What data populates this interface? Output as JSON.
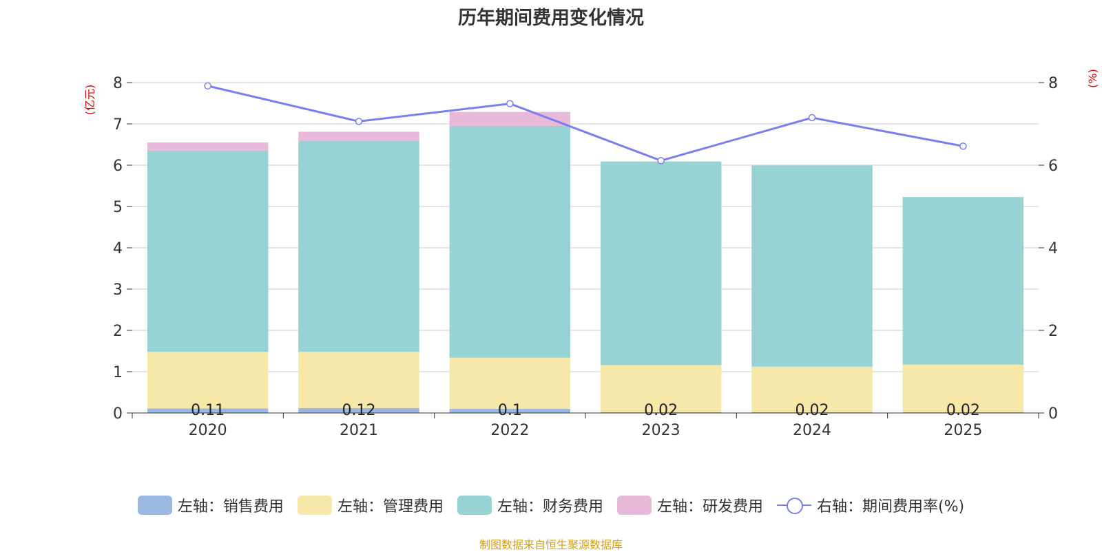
{
  "chart_data": {
    "type": "bar",
    "title": "历年期间费用变化情况",
    "categories": [
      "2020",
      "2021",
      "2022",
      "2023",
      "2024",
      "2025"
    ],
    "series": [
      {
        "name": "左轴：销售费用",
        "axis": "left",
        "type": "bar",
        "color": "#9bb8e3",
        "values": [
          0.11,
          0.12,
          0.1,
          0.02,
          0.02,
          0.02
        ]
      },
      {
        "name": "左轴：管理费用",
        "axis": "left",
        "type": "bar",
        "color": "#f7e7a8",
        "values": [
          1.37,
          1.36,
          1.24,
          1.14,
          1.1,
          1.15
        ]
      },
      {
        "name": "左轴：财务费用",
        "axis": "left",
        "type": "bar",
        "color": "#97d3d4",
        "values": [
          4.87,
          5.11,
          5.61,
          4.93,
          4.87,
          4.06
        ]
      },
      {
        "name": "左轴：研发费用",
        "axis": "left",
        "type": "bar",
        "color": "#e8b9d9",
        "values": [
          0.2,
          0.22,
          0.34,
          0.0,
          0.0,
          0.0
        ]
      },
      {
        "name": "右轴：期间费用率(%)",
        "axis": "right",
        "type": "line",
        "color": "#7a7ff0",
        "values": [
          7.92,
          7.06,
          7.49,
          6.11,
          7.15,
          6.46
        ]
      }
    ],
    "data_labels": [
      "0.11",
      "0.12",
      "0.1",
      "0.02",
      "0.02",
      "0.02"
    ],
    "y_left": {
      "label": "(亿元)",
      "min": 0,
      "max": 8,
      "ticks": [
        "0",
        "1",
        "2",
        "3",
        "4",
        "5",
        "6",
        "7",
        "8"
      ]
    },
    "y_right": {
      "label": "(%)",
      "min": 0,
      "max": 8,
      "ticks": [
        "0",
        "2",
        "4",
        "6",
        "8"
      ]
    },
    "grid": true,
    "legend_position": "bottom"
  },
  "footer": "制图数据来自恒生聚源数据库"
}
